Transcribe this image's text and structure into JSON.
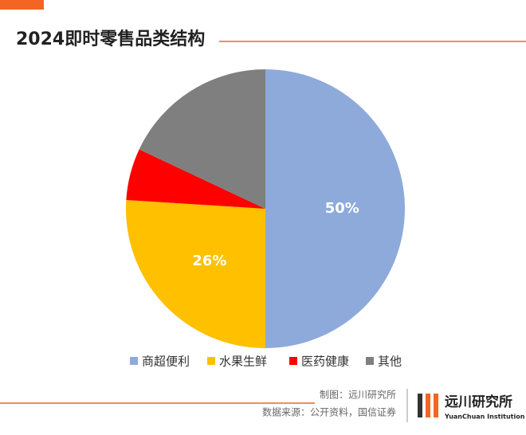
{
  "chart_data": {
    "type": "pie",
    "title": "2024即时零售品类结构",
    "categories": [
      "商超便利",
      "水果生鲜",
      "医药健康",
      "其他"
    ],
    "values": [
      50,
      26,
      6,
      18
    ],
    "value_labels": [
      "50%",
      "26%",
      null,
      null
    ],
    "colors": [
      "#8eaadb",
      "#ffc000",
      "#ff0000",
      "#7f7f7f"
    ],
    "legend": "bottom"
  },
  "footer": {
    "credit": "制图：远川研究所",
    "source": "数据来源：公开资料，国信证券",
    "logo": "远川研究所",
    "logo_sub": "YuanChuan Institution"
  }
}
